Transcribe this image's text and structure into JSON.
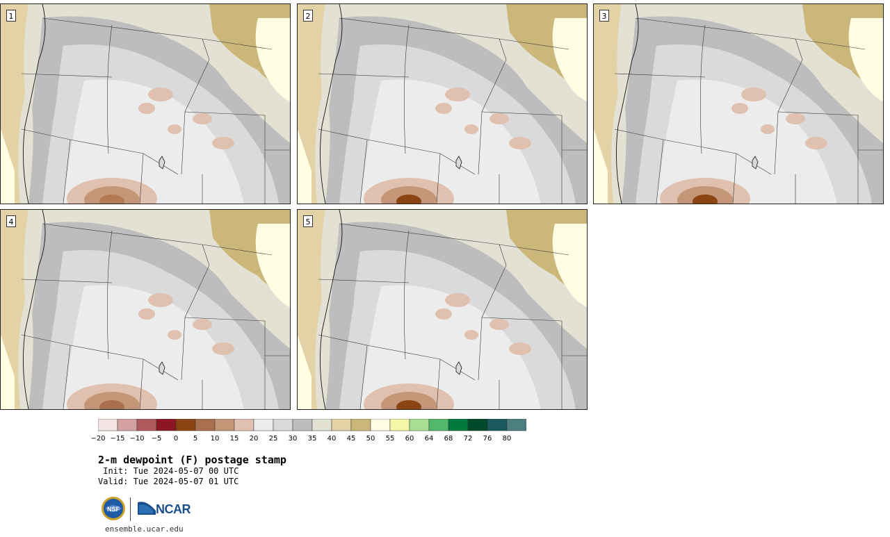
{
  "panels": [
    {
      "label": "1",
      "hot_color": "#b37a56"
    },
    {
      "label": "2",
      "hot_color": "#8a4512"
    },
    {
      "label": "3",
      "hot_color": "#8a4512"
    },
    {
      "label": "4",
      "hot_color": "#a8704e"
    },
    {
      "label": "5",
      "hot_color": "#8a4512"
    }
  ],
  "colorbar": {
    "colors": [
      "#f3e6e4",
      "#d4a1a3",
      "#b05a5f",
      "#8c1623",
      "#8b4513",
      "#a8704e",
      "#c49678",
      "#e0c0ae",
      "#ececec",
      "#dadada",
      "#bdbdbd",
      "#e2e1d4",
      "#e2d2a6",
      "#ccb77a",
      "#fffde2",
      "#f6f6a8",
      "#a6df92",
      "#52b86a",
      "#007a3c",
      "#00492a",
      "#1b5a5c",
      "#4d7e80"
    ],
    "ticks": [
      "−20",
      "−15",
      "−10",
      "−5",
      "0",
      "5",
      "10",
      "15",
      "20",
      "25",
      "30",
      "35",
      "40",
      "45",
      "50",
      "55",
      "60",
      "64",
      "68",
      "72",
      "76",
      "80"
    ]
  },
  "title": "2-m dewpoint (F) postage stamp",
  "init_line": " Init: Tue 2024-05-07 00 UTC",
  "valid_line": "Valid: Tue 2024-05-07 01 UTC",
  "logo": {
    "agency_text": "NCAR",
    "nsf_text": "NSF"
  },
  "site": "ensemble.ucar.edu",
  "icons": {
    "nsf_logo": "nsf-globe-icon",
    "ncar_logo": "ncar-mark-icon"
  }
}
